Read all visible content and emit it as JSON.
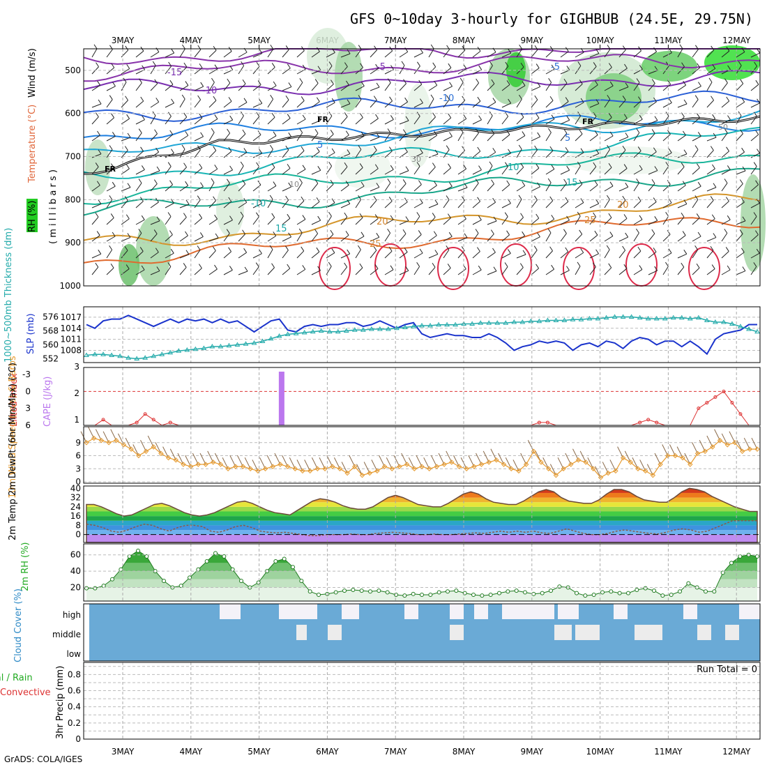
{
  "title": "GFS 0~10day 3-hourly for GIGHBUB (24.5E, 29.75N)",
  "credit": "GrADS: COLA/IGES",
  "run_total": "Run Total = 0",
  "days": [
    "3MAY",
    "4MAY",
    "5MAY",
    "6MAY",
    "7MAY",
    "8MAY",
    "9MAY",
    "10MAY",
    "11MAY",
    "12MAY"
  ],
  "colors": {
    "rh_green": "#22cc22",
    "slp": "#1a33cc",
    "thickness": "#22aaaa",
    "cape": "#bb77ee",
    "lifted": "#dd3333",
    "wind10m": "#e69a2e",
    "cloud": "#6aaad6",
    "rh2m": "#22aa22"
  },
  "chart_data": [
    {
      "type": "heatmap",
      "panel": "upper-air",
      "ylabel_parts": [
        "RH (%)",
        "Temperature (°C)",
        "Wind (m/s)",
        "( m i l l i b a r s )"
      ],
      "y_ticks": [
        "500",
        "600",
        "700",
        "800",
        "900",
        "1000"
      ],
      "ylim": [
        1000,
        450
      ],
      "temperature_labels": [
        "-15",
        "-10",
        "-5",
        "-10",
        "-5",
        "5",
        "5",
        "10",
        "15",
        "-10",
        "15",
        "20",
        "20",
        "25",
        "25"
      ],
      "freezing_label": "FR",
      "rh_labels": [
        "10",
        "30",
        "50"
      ]
    },
    {
      "type": "line",
      "panel": "slp-thickness",
      "ylabel_left": "1000~500mb Thickness (dm)",
      "ylabel_right": "SLP (mb)",
      "y_ticks_left": [
        "552",
        "560",
        "568",
        "576"
      ],
      "y_ticks_right": [
        "1008",
        "1011",
        "1014",
        "1017"
      ],
      "series": [
        {
          "name": "SLP (mb)",
          "values": [
            1015.0,
            1014.0,
            1016.0,
            1016.5,
            1016.5,
            1017.5,
            1016.5,
            1015.5,
            1014.5,
            1015.5,
            1016.5,
            1015.5,
            1016.5,
            1016.0,
            1016.5,
            1015.5,
            1016.5,
            1015.5,
            1016.0,
            1014.5,
            1013.0,
            1014.5,
            1016.0,
            1016.5,
            1013.5,
            1013.0,
            1014.5,
            1015.0,
            1014.5,
            1015.0,
            1015.0,
            1015.5,
            1015.5,
            1014.5,
            1015.0,
            1016.0,
            1015.0,
            1014.0,
            1015.0,
            1015.5,
            1012.5,
            1011.5,
            1012.0,
            1012.5,
            1012.0,
            1012.0,
            1011.5,
            1011.5,
            1012.5,
            1011.5,
            1010.0,
            1008.0,
            1009.0,
            1009.5,
            1010.5,
            1010.0,
            1010.5,
            1010.0,
            1008.0,
            1009.5,
            1010.0,
            1009.0,
            1010.5,
            1010.0,
            1008.5,
            1010.5,
            1011.5,
            1011.0,
            1009.5,
            1010.5,
            1010.5,
            1009.0,
            1010.5,
            1009.0,
            1007.0,
            1011.0,
            1012.5,
            1013.0,
            1013.5,
            1015.0,
            1015.0
          ]
        },
        {
          "name": "1000-500mb Thickness (dm)",
          "values": [
            554.0,
            554.5,
            554.5,
            554.0,
            553.5,
            552.5,
            552.0,
            552.5,
            553.5,
            554.5,
            555.5,
            556.5,
            557.0,
            557.5,
            558.0,
            559.0,
            559.0,
            559.5,
            560.0,
            560.5,
            561.0,
            562.0,
            563.5,
            565.0,
            566.0,
            566.5,
            567.0,
            567.5,
            568.0,
            567.5,
            567.5,
            568.0,
            568.5,
            568.5,
            569.0,
            569.0,
            569.0,
            569.5,
            570.0,
            570.5,
            571.0,
            571.0,
            571.5,
            571.5,
            571.5,
            572.0,
            572.0,
            572.5,
            572.5,
            572.5,
            572.5,
            573.0,
            573.0,
            573.5,
            573.5,
            574.0,
            574.0,
            574.0,
            574.5,
            574.5,
            575.0,
            575.0,
            575.5,
            576.0,
            576.0,
            576.0,
            575.5,
            575.0,
            575.0,
            575.0,
            575.5,
            575.5,
            575.0,
            575.5,
            574.0,
            573.0,
            573.0,
            572.0,
            570.5,
            569.0,
            567.5
          ]
        }
      ]
    },
    {
      "type": "bar",
      "panel": "instability",
      "ylabel_left": "Lifted Index",
      "ylabel_right": "CAPE (J/kg)",
      "y_ticks_left": [
        "-3",
        "0",
        "3",
        "6"
      ],
      "y_ticks_right": [
        "1",
        "2",
        "3"
      ],
      "series": [
        {
          "name": "CAPE (J/kg)",
          "values": [
            {
              "x": 2.83,
              "y": 3.0
            }
          ]
        },
        {
          "name": "Lifted Index",
          "values": [
            6.0,
            6.0,
            5.0,
            6.0,
            6.0,
            6.0,
            5.5,
            4.0,
            5.0,
            6.0,
            5.5,
            6.0,
            6.0,
            6.0,
            6.0,
            6.0,
            6.0,
            6.0,
            6.0,
            6.0,
            6.0,
            6.0,
            6.0,
            6.0,
            6.0,
            6.0,
            6.0,
            6.0,
            6.0,
            6.0,
            6.0,
            6.0,
            6.0,
            6.0,
            6.0,
            6.0,
            6.0,
            6.0,
            6.0,
            6.0,
            6.0,
            6.0,
            6.0,
            6.0,
            6.0,
            6.0,
            6.0,
            6.0,
            6.0,
            6.0,
            6.0,
            6.0,
            6.0,
            6.0,
            5.5,
            5.5,
            6.0,
            6.0,
            6.0,
            6.0,
            6.0,
            6.0,
            6.0,
            6.0,
            6.0,
            6.0,
            5.5,
            5.0,
            5.5,
            6.0,
            6.0,
            6.0,
            6.0,
            3.0,
            2.0,
            1.0,
            0.0,
            2.0,
            4.0,
            6.0,
            6.0
          ]
        }
      ]
    },
    {
      "type": "line",
      "panel": "wind-10m",
      "ylabel": "10m Wind Speed (m/s) & Barbs",
      "y_ticks": [
        "0",
        "3",
        "6",
        "9"
      ],
      "series": [
        {
          "name": "10m Wind Speed (m/s)",
          "values": [
            9.0,
            10.0,
            9.5,
            9.0,
            9.5,
            8.5,
            7.5,
            6.0,
            7.0,
            8.0,
            6.5,
            5.5,
            5.0,
            4.0,
            3.5,
            4.0,
            4.0,
            4.5,
            4.0,
            3.0,
            3.5,
            3.5,
            3.0,
            2.5,
            3.0,
            3.5,
            4.0,
            3.5,
            3.0,
            2.5,
            2.5,
            3.0,
            3.0,
            3.5,
            3.0,
            2.0,
            3.5,
            1.5,
            2.0,
            2.5,
            3.5,
            3.0,
            3.5,
            4.0,
            3.0,
            3.5,
            3.0,
            3.5,
            4.0,
            4.5,
            3.5,
            3.0,
            3.5,
            4.0,
            4.5,
            5.0,
            4.0,
            3.0,
            2.5,
            4.0,
            7.0,
            4.5,
            3.0,
            1.5,
            3.0,
            4.0,
            5.0,
            4.5,
            3.0,
            1.0,
            2.0,
            2.5,
            5.5,
            4.5,
            3.0,
            2.5,
            1.5,
            4.0,
            6.0,
            6.0,
            5.5,
            4.0,
            6.5,
            7.0,
            8.0,
            9.5,
            8.5,
            9.0,
            7.0,
            7.5,
            7.5
          ]
        }
      ]
    },
    {
      "type": "area",
      "panel": "temperature-2m",
      "ylabel": "2m Temp 2m DewPt (6hr Min/Max) (°C)",
      "y_ticks": [
        "0",
        "8",
        "16",
        "24",
        "32",
        "40"
      ],
      "series": [
        {
          "name": "2m Temp",
          "values": [
            26.0,
            26.0,
            24.0,
            21.0,
            18.0,
            16.0,
            17.0,
            20.0,
            23.0,
            26.0,
            27.0,
            25.0,
            22.0,
            19.0,
            17.0,
            16.0,
            17.0,
            19.0,
            22.0,
            25.0,
            28.0,
            29.0,
            27.0,
            24.0,
            21.0,
            19.0,
            18.0,
            17.0,
            21.0,
            25.0,
            29.0,
            31.0,
            30.0,
            28.0,
            25.0,
            23.0,
            22.0,
            22.0,
            24.0,
            28.0,
            32.0,
            34.0,
            32.0,
            29.0,
            26.0,
            25.0,
            24.0,
            24.0,
            27.0,
            31.0,
            35.0,
            37.0,
            35.0,
            31.0,
            28.0,
            27.0,
            26.0,
            26.0,
            29.0,
            33.0,
            37.0,
            39.0,
            37.0,
            32.0,
            29.0,
            28.0,
            27.0,
            27.0,
            30.0,
            35.0,
            39.0,
            39.0,
            37.0,
            33.0,
            30.0,
            29.0,
            28.0,
            28.0,
            32.0,
            37.0,
            40.0,
            39.0,
            37.0,
            33.0,
            30.0,
            27.0,
            24.0,
            22.0,
            20.0,
            20.0
          ]
        },
        {
          "name": "2m DewPt",
          "values": [
            9.0,
            8.0,
            6.0,
            3.0,
            2.0,
            4.0,
            7.0,
            9.0,
            8.0,
            5.0,
            3.0,
            6.0,
            8.0,
            8.0,
            7.0,
            3.0,
            2.0,
            4.0,
            7.0,
            8.0,
            6.0,
            3.0,
            2.0,
            1.5,
            2.0,
            1.0,
            0.0,
            -1.0,
            -1.0,
            0.0,
            0.0,
            0.0,
            0.5,
            0.0,
            0.0,
            1.0,
            1.5,
            2.0,
            1.5,
            1.0,
            0.0,
            0.0,
            0.5,
            0.0,
            0.0,
            0.5,
            1.0,
            1.5,
            1.0,
            2.0,
            3.0,
            2.0,
            3.0,
            2.0,
            3.0,
            1.5,
            1.0,
            3.0,
            5.0,
            3.0,
            1.0,
            0.0,
            0.0,
            1.0,
            3.0,
            4.0,
            3.0,
            2.0,
            1.0,
            0.5,
            2.0,
            4.0,
            5.0,
            4.0,
            2.0,
            3.0,
            6.0,
            9.0,
            12.0,
            12.0,
            12.0,
            12.0
          ]
        }
      ]
    },
    {
      "type": "area",
      "panel": "rh-2m",
      "ylabel": "2m RH (%)",
      "y_ticks": [
        "20",
        "40",
        "60"
      ],
      "series": [
        {
          "name": "2m RH (%)",
          "values": [
            19,
            19,
            22,
            30,
            42,
            58,
            65,
            58,
            40,
            28,
            20,
            22,
            32,
            42,
            52,
            62,
            58,
            42,
            28,
            20,
            26,
            40,
            52,
            55,
            45,
            28,
            15,
            11,
            12,
            14,
            16,
            17,
            16,
            15,
            16,
            14,
            11,
            10,
            12,
            11,
            11,
            14,
            15,
            16,
            13,
            11,
            10,
            11,
            13,
            15,
            16,
            14,
            12,
            13,
            16,
            21,
            20,
            13,
            10,
            11,
            14,
            15,
            13,
            13,
            17,
            19,
            16,
            10,
            11,
            15,
            25,
            20,
            15,
            15,
            38,
            50,
            58,
            60,
            58
          ]
        }
      ]
    },
    {
      "type": "heatmap",
      "panel": "cloud-cover",
      "ylabel": "Cloud Cover (%)",
      "y_ticks": [
        "high",
        "middle",
        "low"
      ]
    },
    {
      "type": "bar",
      "panel": "precip",
      "ylabel_left": "Total / Rain",
      "ylabel_left2": "Convective",
      "ylabel": "3hr Precip (mm)",
      "y_ticks": [
        "0",
        "0.2",
        "0.4",
        "0.6",
        "0.8"
      ],
      "values": []
    }
  ]
}
